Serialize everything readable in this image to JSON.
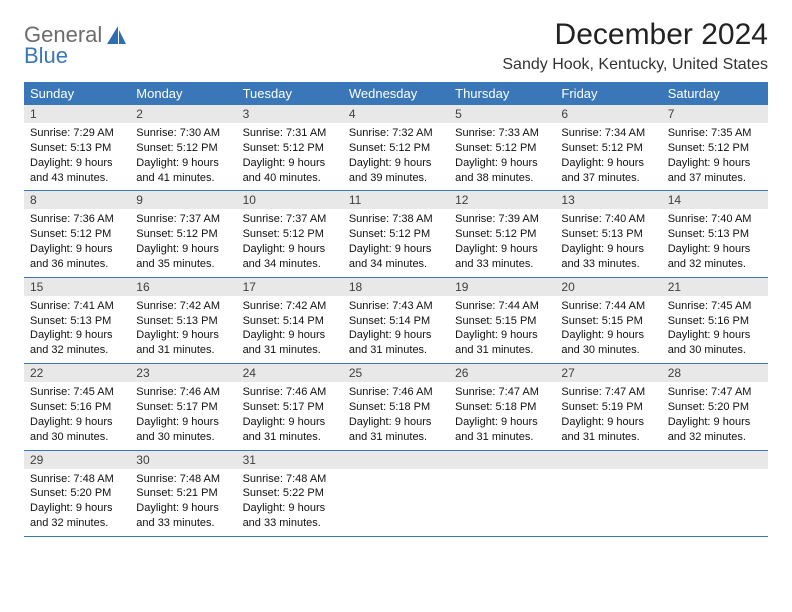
{
  "logo": {
    "word1": "General",
    "word2": "Blue"
  },
  "title": "December 2024",
  "location": "Sandy Hook, Kentucky, United States",
  "colors": {
    "header_bg": "#3a77b9",
    "header_fg": "#ffffff",
    "daynum_bg": "#e8e8e8",
    "daynum_fg": "#3f3f3f",
    "border": "#3a77b9",
    "page_bg": "#ffffff",
    "text": "#000000",
    "logo_gray": "#6c6c6c",
    "logo_blue": "#3a77b9"
  },
  "typography": {
    "title_fontsize": 30,
    "location_fontsize": 16,
    "dayheader_fontsize": 13,
    "daynum_fontsize": 12,
    "body_fontsize": 11,
    "logo_fontsize": 22
  },
  "day_headers": [
    "Sunday",
    "Monday",
    "Tuesday",
    "Wednesday",
    "Thursday",
    "Friday",
    "Saturday"
  ],
  "weeks": [
    [
      {
        "n": "1",
        "sr": "Sunrise: 7:29 AM",
        "ss": "Sunset: 5:13 PM",
        "d1": "Daylight: 9 hours",
        "d2": "and 43 minutes."
      },
      {
        "n": "2",
        "sr": "Sunrise: 7:30 AM",
        "ss": "Sunset: 5:12 PM",
        "d1": "Daylight: 9 hours",
        "d2": "and 41 minutes."
      },
      {
        "n": "3",
        "sr": "Sunrise: 7:31 AM",
        "ss": "Sunset: 5:12 PM",
        "d1": "Daylight: 9 hours",
        "d2": "and 40 minutes."
      },
      {
        "n": "4",
        "sr": "Sunrise: 7:32 AM",
        "ss": "Sunset: 5:12 PM",
        "d1": "Daylight: 9 hours",
        "d2": "and 39 minutes."
      },
      {
        "n": "5",
        "sr": "Sunrise: 7:33 AM",
        "ss": "Sunset: 5:12 PM",
        "d1": "Daylight: 9 hours",
        "d2": "and 38 minutes."
      },
      {
        "n": "6",
        "sr": "Sunrise: 7:34 AM",
        "ss": "Sunset: 5:12 PM",
        "d1": "Daylight: 9 hours",
        "d2": "and 37 minutes."
      },
      {
        "n": "7",
        "sr": "Sunrise: 7:35 AM",
        "ss": "Sunset: 5:12 PM",
        "d1": "Daylight: 9 hours",
        "d2": "and 37 minutes."
      }
    ],
    [
      {
        "n": "8",
        "sr": "Sunrise: 7:36 AM",
        "ss": "Sunset: 5:12 PM",
        "d1": "Daylight: 9 hours",
        "d2": "and 36 minutes."
      },
      {
        "n": "9",
        "sr": "Sunrise: 7:37 AM",
        "ss": "Sunset: 5:12 PM",
        "d1": "Daylight: 9 hours",
        "d2": "and 35 minutes."
      },
      {
        "n": "10",
        "sr": "Sunrise: 7:37 AM",
        "ss": "Sunset: 5:12 PM",
        "d1": "Daylight: 9 hours",
        "d2": "and 34 minutes."
      },
      {
        "n": "11",
        "sr": "Sunrise: 7:38 AM",
        "ss": "Sunset: 5:12 PM",
        "d1": "Daylight: 9 hours",
        "d2": "and 34 minutes."
      },
      {
        "n": "12",
        "sr": "Sunrise: 7:39 AM",
        "ss": "Sunset: 5:12 PM",
        "d1": "Daylight: 9 hours",
        "d2": "and 33 minutes."
      },
      {
        "n": "13",
        "sr": "Sunrise: 7:40 AM",
        "ss": "Sunset: 5:13 PM",
        "d1": "Daylight: 9 hours",
        "d2": "and 33 minutes."
      },
      {
        "n": "14",
        "sr": "Sunrise: 7:40 AM",
        "ss": "Sunset: 5:13 PM",
        "d1": "Daylight: 9 hours",
        "d2": "and 32 minutes."
      }
    ],
    [
      {
        "n": "15",
        "sr": "Sunrise: 7:41 AM",
        "ss": "Sunset: 5:13 PM",
        "d1": "Daylight: 9 hours",
        "d2": "and 32 minutes."
      },
      {
        "n": "16",
        "sr": "Sunrise: 7:42 AM",
        "ss": "Sunset: 5:13 PM",
        "d1": "Daylight: 9 hours",
        "d2": "and 31 minutes."
      },
      {
        "n": "17",
        "sr": "Sunrise: 7:42 AM",
        "ss": "Sunset: 5:14 PM",
        "d1": "Daylight: 9 hours",
        "d2": "and 31 minutes."
      },
      {
        "n": "18",
        "sr": "Sunrise: 7:43 AM",
        "ss": "Sunset: 5:14 PM",
        "d1": "Daylight: 9 hours",
        "d2": "and 31 minutes."
      },
      {
        "n": "19",
        "sr": "Sunrise: 7:44 AM",
        "ss": "Sunset: 5:15 PM",
        "d1": "Daylight: 9 hours",
        "d2": "and 31 minutes."
      },
      {
        "n": "20",
        "sr": "Sunrise: 7:44 AM",
        "ss": "Sunset: 5:15 PM",
        "d1": "Daylight: 9 hours",
        "d2": "and 30 minutes."
      },
      {
        "n": "21",
        "sr": "Sunrise: 7:45 AM",
        "ss": "Sunset: 5:16 PM",
        "d1": "Daylight: 9 hours",
        "d2": "and 30 minutes."
      }
    ],
    [
      {
        "n": "22",
        "sr": "Sunrise: 7:45 AM",
        "ss": "Sunset: 5:16 PM",
        "d1": "Daylight: 9 hours",
        "d2": "and 30 minutes."
      },
      {
        "n": "23",
        "sr": "Sunrise: 7:46 AM",
        "ss": "Sunset: 5:17 PM",
        "d1": "Daylight: 9 hours",
        "d2": "and 30 minutes."
      },
      {
        "n": "24",
        "sr": "Sunrise: 7:46 AM",
        "ss": "Sunset: 5:17 PM",
        "d1": "Daylight: 9 hours",
        "d2": "and 31 minutes."
      },
      {
        "n": "25",
        "sr": "Sunrise: 7:46 AM",
        "ss": "Sunset: 5:18 PM",
        "d1": "Daylight: 9 hours",
        "d2": "and 31 minutes."
      },
      {
        "n": "26",
        "sr": "Sunrise: 7:47 AM",
        "ss": "Sunset: 5:18 PM",
        "d1": "Daylight: 9 hours",
        "d2": "and 31 minutes."
      },
      {
        "n": "27",
        "sr": "Sunrise: 7:47 AM",
        "ss": "Sunset: 5:19 PM",
        "d1": "Daylight: 9 hours",
        "d2": "and 31 minutes."
      },
      {
        "n": "28",
        "sr": "Sunrise: 7:47 AM",
        "ss": "Sunset: 5:20 PM",
        "d1": "Daylight: 9 hours",
        "d2": "and 32 minutes."
      }
    ],
    [
      {
        "n": "29",
        "sr": "Sunrise: 7:48 AM",
        "ss": "Sunset: 5:20 PM",
        "d1": "Daylight: 9 hours",
        "d2": "and 32 minutes."
      },
      {
        "n": "30",
        "sr": "Sunrise: 7:48 AM",
        "ss": "Sunset: 5:21 PM",
        "d1": "Daylight: 9 hours",
        "d2": "and 33 minutes."
      },
      {
        "n": "31",
        "sr": "Sunrise: 7:48 AM",
        "ss": "Sunset: 5:22 PM",
        "d1": "Daylight: 9 hours",
        "d2": "and 33 minutes."
      },
      {
        "empty": true
      },
      {
        "empty": true
      },
      {
        "empty": true
      },
      {
        "empty": true
      }
    ]
  ]
}
